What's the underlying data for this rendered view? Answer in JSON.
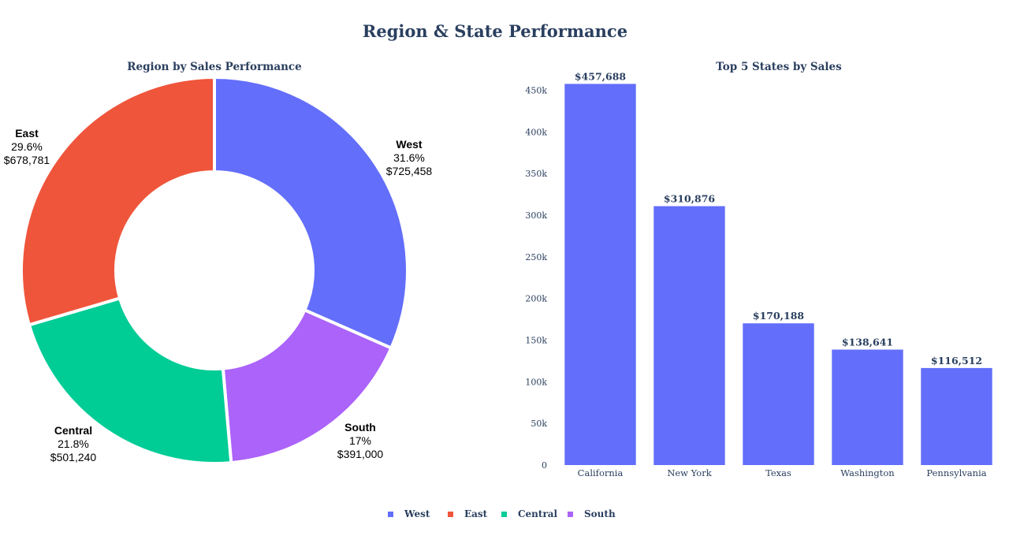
{
  "page": {
    "title": "Region & State Performance"
  },
  "chart_data": [
    {
      "type": "pie",
      "style": "donut",
      "title": "Region by Sales Performance",
      "slices": [
        {
          "label": "West",
          "percent": "31.6%",
          "value": 725458,
          "value_text": "$725,458",
          "color": "#636efa"
        },
        {
          "label": "South",
          "percent": "17%",
          "value": 391000,
          "value_text": "$391,000",
          "color": "#ab63fa"
        },
        {
          "label": "Central",
          "percent": "21.8%",
          "value": 501240,
          "value_text": "$501,240",
          "color": "#00cc96"
        },
        {
          "label": "East",
          "percent": "29.6%",
          "value": 678781,
          "value_text": "$678,781",
          "color": "#ef553b"
        }
      ],
      "legend": [
        "West",
        "East",
        "Central",
        "South"
      ],
      "legend_placement": "bottom-center"
    },
    {
      "type": "bar",
      "title": "Top 5 States by Sales",
      "categories": [
        "California",
        "New York",
        "Texas",
        "Washington",
        "Pennsylvania"
      ],
      "values": [
        457688,
        310876,
        170188,
        138641,
        116512
      ],
      "value_labels": [
        "$457,688",
        "$310,876",
        "$170,188",
        "$138,641",
        "$116,512"
      ],
      "bar_color": "#636efa",
      "ylim": [
        0,
        460000
      ],
      "yticks": [
        0,
        50000,
        100000,
        150000,
        200000,
        250000,
        300000,
        350000,
        400000,
        450000
      ],
      "ytick_labels": [
        "0",
        "50k",
        "100k",
        "150k",
        "200k",
        "250k",
        "300k",
        "350k",
        "400k",
        "450k"
      ],
      "grid": false
    }
  ]
}
